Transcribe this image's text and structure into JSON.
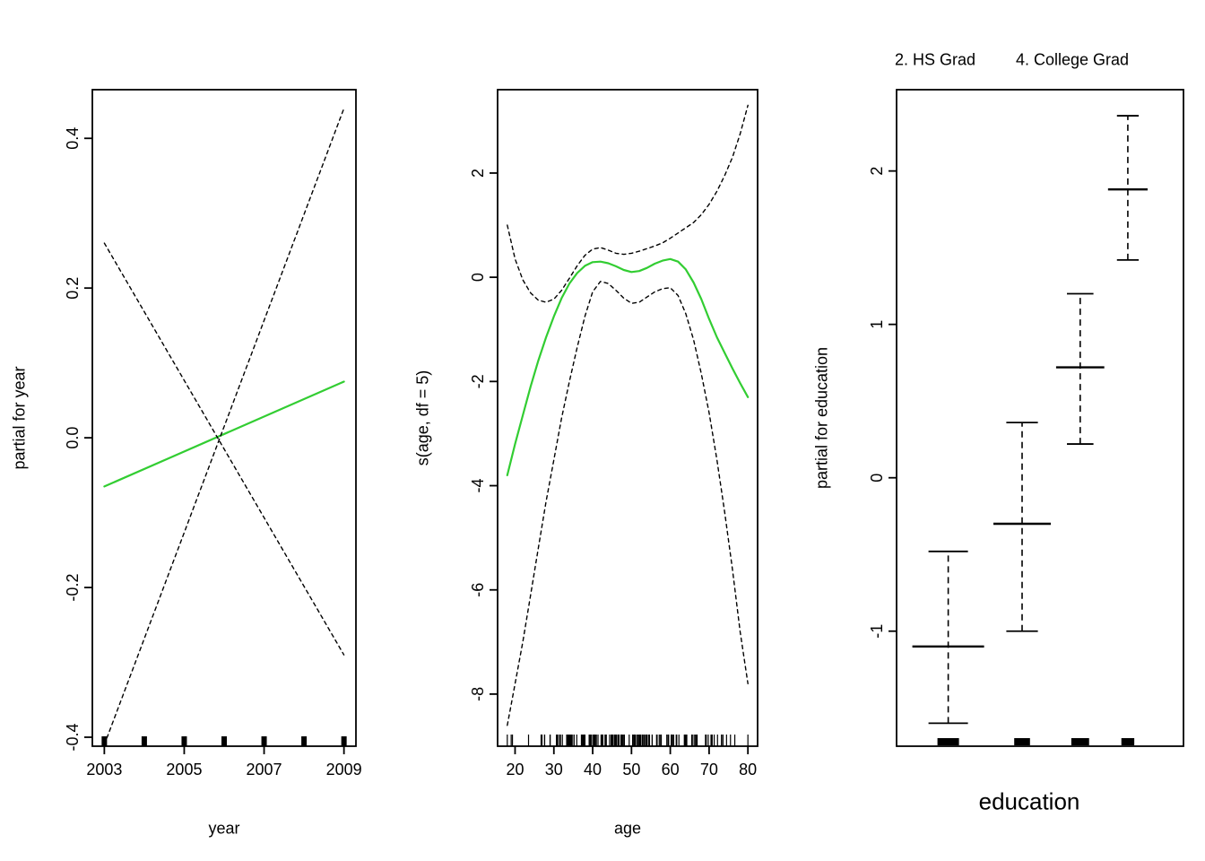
{
  "figure": {
    "background": "#ffffff",
    "fit_color": "#32CD32",
    "band_color": "#000000"
  },
  "chart_data": [
    {
      "id": "year",
      "type": "line",
      "title": "",
      "xlabel": "year",
      "ylabel": "partial for year",
      "xlim": [
        2002.7,
        2009.3
      ],
      "ylim": [
        -0.412,
        0.465
      ],
      "grid": false,
      "xticks": [
        {
          "v": 2003,
          "label": "2003"
        },
        {
          "v": 2005,
          "label": "2005"
        },
        {
          "v": 2007,
          "label": "2007"
        },
        {
          "v": 2009,
          "label": "2009"
        }
      ],
      "yticks": [
        {
          "v": -0.4,
          "label": "-0.4"
        },
        {
          "v": -0.2,
          "label": "-0.2"
        },
        {
          "v": 0,
          "label": "0.0"
        },
        {
          "v": 0.2,
          "label": "0.2"
        },
        {
          "v": 0.4,
          "label": "0.4"
        }
      ],
      "series": [
        {
          "name": "fit",
          "style": "solid",
          "color": "green",
          "points": [
            [
              2003,
              -0.065
            ],
            [
              2009,
              0.075
            ]
          ]
        },
        {
          "name": "se-band-a",
          "style": "dashed",
          "color": "black",
          "points": [
            [
              2003,
              0.26
            ],
            [
              2009,
              -0.29
            ]
          ]
        },
        {
          "name": "se-band-b",
          "style": "dashed",
          "color": "black",
          "points": [
            [
              2003,
              -0.41
            ],
            [
              2009,
              0.44
            ]
          ]
        }
      ],
      "rug": {
        "type": "years",
        "values": [
          2003,
          2004,
          2005,
          2006,
          2007,
          2008,
          2009
        ]
      }
    },
    {
      "id": "age",
      "type": "line",
      "title": "",
      "xlabel": "age",
      "ylabel": "s(age, df = 5)",
      "xlim": [
        15.5,
        82.5
      ],
      "ylim": [
        -9.0,
        3.6
      ],
      "grid": false,
      "xticks": [
        {
          "v": 20,
          "label": "20"
        },
        {
          "v": 30,
          "label": "30"
        },
        {
          "v": 40,
          "label": "40"
        },
        {
          "v": 50,
          "label": "50"
        },
        {
          "v": 60,
          "label": "60"
        },
        {
          "v": 70,
          "label": "70"
        },
        {
          "v": 80,
          "label": "80"
        }
      ],
      "yticks": [
        {
          "v": 2,
          "label": "2"
        },
        {
          "v": 0,
          "label": "0"
        },
        {
          "v": -2,
          "label": "-2"
        },
        {
          "v": -4,
          "label": "-4"
        },
        {
          "v": -6,
          "label": "-6"
        },
        {
          "v": -8,
          "label": "-8"
        }
      ],
      "series": [
        {
          "name": "fit",
          "style": "solid",
          "color": "green",
          "points": [
            [
              18,
              -3.8
            ],
            [
              20,
              -3.2
            ],
            [
              22,
              -2.65
            ],
            [
              24,
              -2.1
            ],
            [
              26,
              -1.6
            ],
            [
              28,
              -1.15
            ],
            [
              30,
              -0.75
            ],
            [
              32,
              -0.4
            ],
            [
              34,
              -0.12
            ],
            [
              36,
              0.08
            ],
            [
              38,
              0.22
            ],
            [
              40,
              0.29
            ],
            [
              42,
              0.3
            ],
            [
              44,
              0.27
            ],
            [
              46,
              0.21
            ],
            [
              48,
              0.14
            ],
            [
              50,
              0.1
            ],
            [
              52,
              0.12
            ],
            [
              54,
              0.18
            ],
            [
              56,
              0.26
            ],
            [
              58,
              0.32
            ],
            [
              60,
              0.35
            ],
            [
              62,
              0.3
            ],
            [
              64,
              0.15
            ],
            [
              66,
              -0.1
            ],
            [
              68,
              -0.42
            ],
            [
              70,
              -0.8
            ],
            [
              72,
              -1.15
            ],
            [
              74,
              -1.45
            ],
            [
              76,
              -1.75
            ],
            [
              78,
              -2.03
            ],
            [
              80,
              -2.3
            ]
          ]
        },
        {
          "name": "upper-band",
          "style": "dashed",
          "color": "black",
          "points": [
            [
              18,
              1.0
            ],
            [
              20,
              0.35
            ],
            [
              22,
              -0.05
            ],
            [
              24,
              -0.3
            ],
            [
              26,
              -0.44
            ],
            [
              28,
              -0.48
            ],
            [
              30,
              -0.42
            ],
            [
              32,
              -0.25
            ],
            [
              34,
              -0.02
            ],
            [
              36,
              0.22
            ],
            [
              38,
              0.42
            ],
            [
              40,
              0.54
            ],
            [
              42,
              0.57
            ],
            [
              44,
              0.52
            ],
            [
              46,
              0.46
            ],
            [
              48,
              0.44
            ],
            [
              50,
              0.46
            ],
            [
              52,
              0.5
            ],
            [
              54,
              0.55
            ],
            [
              56,
              0.6
            ],
            [
              58,
              0.66
            ],
            [
              60,
              0.75
            ],
            [
              62,
              0.85
            ],
            [
              64,
              0.95
            ],
            [
              66,
              1.05
            ],
            [
              68,
              1.2
            ],
            [
              70,
              1.4
            ],
            [
              72,
              1.65
            ],
            [
              74,
              1.95
            ],
            [
              76,
              2.3
            ],
            [
              78,
              2.75
            ],
            [
              80,
              3.3
            ]
          ]
        },
        {
          "name": "lower-band",
          "style": "dashed",
          "color": "black",
          "points": [
            [
              18,
              -8.6
            ],
            [
              20,
              -7.8
            ],
            [
              22,
              -7.0
            ],
            [
              24,
              -6.1
            ],
            [
              26,
              -5.2
            ],
            [
              28,
              -4.3
            ],
            [
              30,
              -3.5
            ],
            [
              32,
              -2.7
            ],
            [
              34,
              -2.0
            ],
            [
              36,
              -1.35
            ],
            [
              38,
              -0.75
            ],
            [
              40,
              -0.28
            ],
            [
              42,
              -0.08
            ],
            [
              44,
              -0.12
            ],
            [
              46,
              -0.25
            ],
            [
              48,
              -0.4
            ],
            [
              50,
              -0.5
            ],
            [
              52,
              -0.48
            ],
            [
              54,
              -0.38
            ],
            [
              56,
              -0.28
            ],
            [
              58,
              -0.22
            ],
            [
              60,
              -0.2
            ],
            [
              62,
              -0.35
            ],
            [
              64,
              -0.7
            ],
            [
              66,
              -1.2
            ],
            [
              68,
              -1.85
            ],
            [
              70,
              -2.6
            ],
            [
              72,
              -3.5
            ],
            [
              74,
              -4.5
            ],
            [
              76,
              -5.6
            ],
            [
              78,
              -6.8
            ],
            [
              80,
              -7.8
            ]
          ]
        }
      ],
      "rug": {
        "type": "dense",
        "min": 18,
        "max": 80,
        "count": 150,
        "extra": [
          18,
          19,
          80
        ]
      }
    },
    {
      "id": "education",
      "type": "error-bars",
      "title": "",
      "xlabel": "education",
      "ylabel": "partial for education",
      "xlim": [
        0,
        1
      ],
      "ylim": [
        -1.75,
        2.53
      ],
      "grid": false,
      "yticks": [
        {
          "v": -1,
          "label": "-1"
        },
        {
          "v": 0,
          "label": "0"
        },
        {
          "v": 1,
          "label": "1"
        },
        {
          "v": 2,
          "label": "2"
        }
      ],
      "top_axis_labels": [
        {
          "label": "2. HS Grad",
          "x": 0.135
        },
        {
          "label": "4. College Grad",
          "x": 0.613
        }
      ],
      "bars": [
        {
          "x": 0.18,
          "center": -1.1,
          "low": -1.6,
          "high": -0.48,
          "half_width": 0.125
        },
        {
          "x": 0.4375,
          "center": -0.3,
          "low": -1.0,
          "high": 0.36,
          "half_width": 0.1
        },
        {
          "x": 0.64,
          "center": 0.72,
          "low": 0.22,
          "high": 1.2,
          "half_width": 0.084
        },
        {
          "x": 0.806,
          "center": 1.88,
          "low": 1.42,
          "high": 2.36,
          "half_width": 0.069
        }
      ],
      "rug_blocks": [
        {
          "x": 0.18,
          "w": 0.075
        },
        {
          "x": 0.4375,
          "w": 0.055
        },
        {
          "x": 0.64,
          "w": 0.062
        },
        {
          "x": 0.806,
          "w": 0.045
        }
      ]
    }
  ]
}
